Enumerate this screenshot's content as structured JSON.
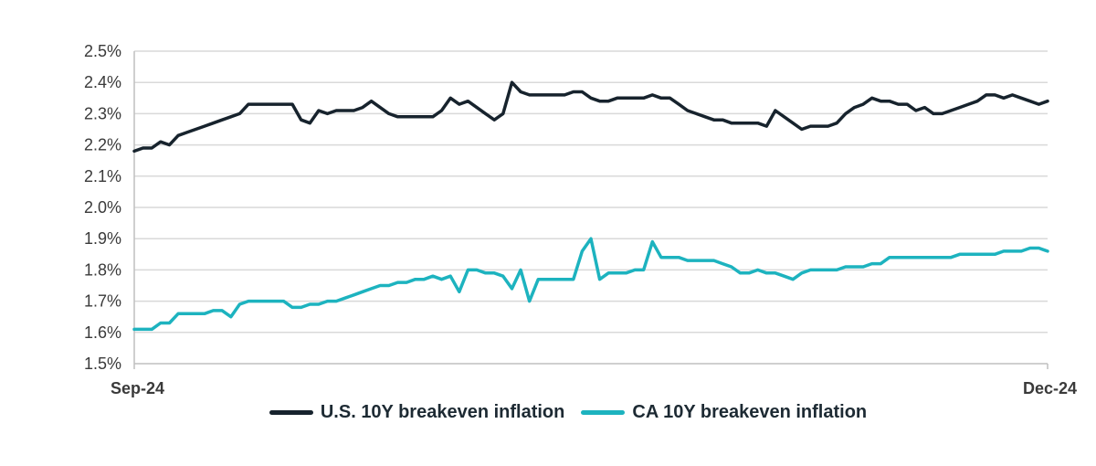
{
  "chart_data": {
    "type": "line",
    "title": "",
    "xlabel": "",
    "ylabel": "",
    "ylim": [
      1.5,
      2.5
    ],
    "y_ticks": [
      1.5,
      1.6,
      1.7,
      1.8,
      1.9,
      2.0,
      2.1,
      2.2,
      2.3,
      2.4,
      2.5
    ],
    "y_tick_labels": [
      "1.5%",
      "1.6%",
      "1.7%",
      "1.8%",
      "1.9%",
      "2.0%",
      "2.1%",
      "2.2%",
      "2.3%",
      "2.4%",
      "2.5%"
    ],
    "x_tick_labels": [
      "Sep-24",
      "Dec-24"
    ],
    "grid": "horizontal",
    "legend_position": "bottom",
    "series": [
      {
        "name": "U.S. 10Y breakeven inflation",
        "color": "#17232d",
        "values": [
          2.18,
          2.19,
          2.19,
          2.21,
          2.2,
          2.23,
          2.24,
          2.25,
          2.26,
          2.27,
          2.28,
          2.29,
          2.3,
          2.33,
          2.33,
          2.33,
          2.33,
          2.33,
          2.33,
          2.28,
          2.27,
          2.31,
          2.3,
          2.31,
          2.31,
          2.31,
          2.32,
          2.34,
          2.32,
          2.3,
          2.29,
          2.29,
          2.29,
          2.29,
          2.29,
          2.31,
          2.35,
          2.33,
          2.34,
          2.32,
          2.3,
          2.28,
          2.3,
          2.4,
          2.37,
          2.36,
          2.36,
          2.36,
          2.36,
          2.36,
          2.37,
          2.37,
          2.35,
          2.34,
          2.34,
          2.35,
          2.35,
          2.35,
          2.35,
          2.36,
          2.35,
          2.35,
          2.33,
          2.31,
          2.3,
          2.29,
          2.28,
          2.28,
          2.27,
          2.27,
          2.27,
          2.27,
          2.26,
          2.31,
          2.29,
          2.27,
          2.25,
          2.26,
          2.26,
          2.26,
          2.27,
          2.3,
          2.32,
          2.33,
          2.35,
          2.34,
          2.34,
          2.33,
          2.33,
          2.31,
          2.32,
          2.3,
          2.3,
          2.31,
          2.32,
          2.33,
          2.34,
          2.36,
          2.36,
          2.35,
          2.36,
          2.35,
          2.34,
          2.33,
          2.34
        ]
      },
      {
        "name": "CA 10Y breakeven inflation",
        "color": "#1db3bf",
        "values": [
          1.61,
          1.61,
          1.61,
          1.63,
          1.63,
          1.66,
          1.66,
          1.66,
          1.66,
          1.67,
          1.67,
          1.65,
          1.69,
          1.7,
          1.7,
          1.7,
          1.7,
          1.7,
          1.68,
          1.68,
          1.69,
          1.69,
          1.7,
          1.7,
          1.71,
          1.72,
          1.73,
          1.74,
          1.75,
          1.75,
          1.76,
          1.76,
          1.77,
          1.77,
          1.78,
          1.77,
          1.78,
          1.73,
          1.8,
          1.8,
          1.79,
          1.79,
          1.78,
          1.74,
          1.8,
          1.7,
          1.77,
          1.77,
          1.77,
          1.77,
          1.77,
          1.86,
          1.9,
          1.77,
          1.79,
          1.79,
          1.79,
          1.8,
          1.8,
          1.89,
          1.84,
          1.84,
          1.84,
          1.83,
          1.83,
          1.83,
          1.83,
          1.82,
          1.81,
          1.79,
          1.79,
          1.8,
          1.79,
          1.79,
          1.78,
          1.77,
          1.79,
          1.8,
          1.8,
          1.8,
          1.8,
          1.81,
          1.81,
          1.81,
          1.82,
          1.82,
          1.84,
          1.84,
          1.84,
          1.84,
          1.84,
          1.84,
          1.84,
          1.84,
          1.85,
          1.85,
          1.85,
          1.85,
          1.85,
          1.86,
          1.86,
          1.86,
          1.87,
          1.87,
          1.86
        ]
      }
    ]
  }
}
